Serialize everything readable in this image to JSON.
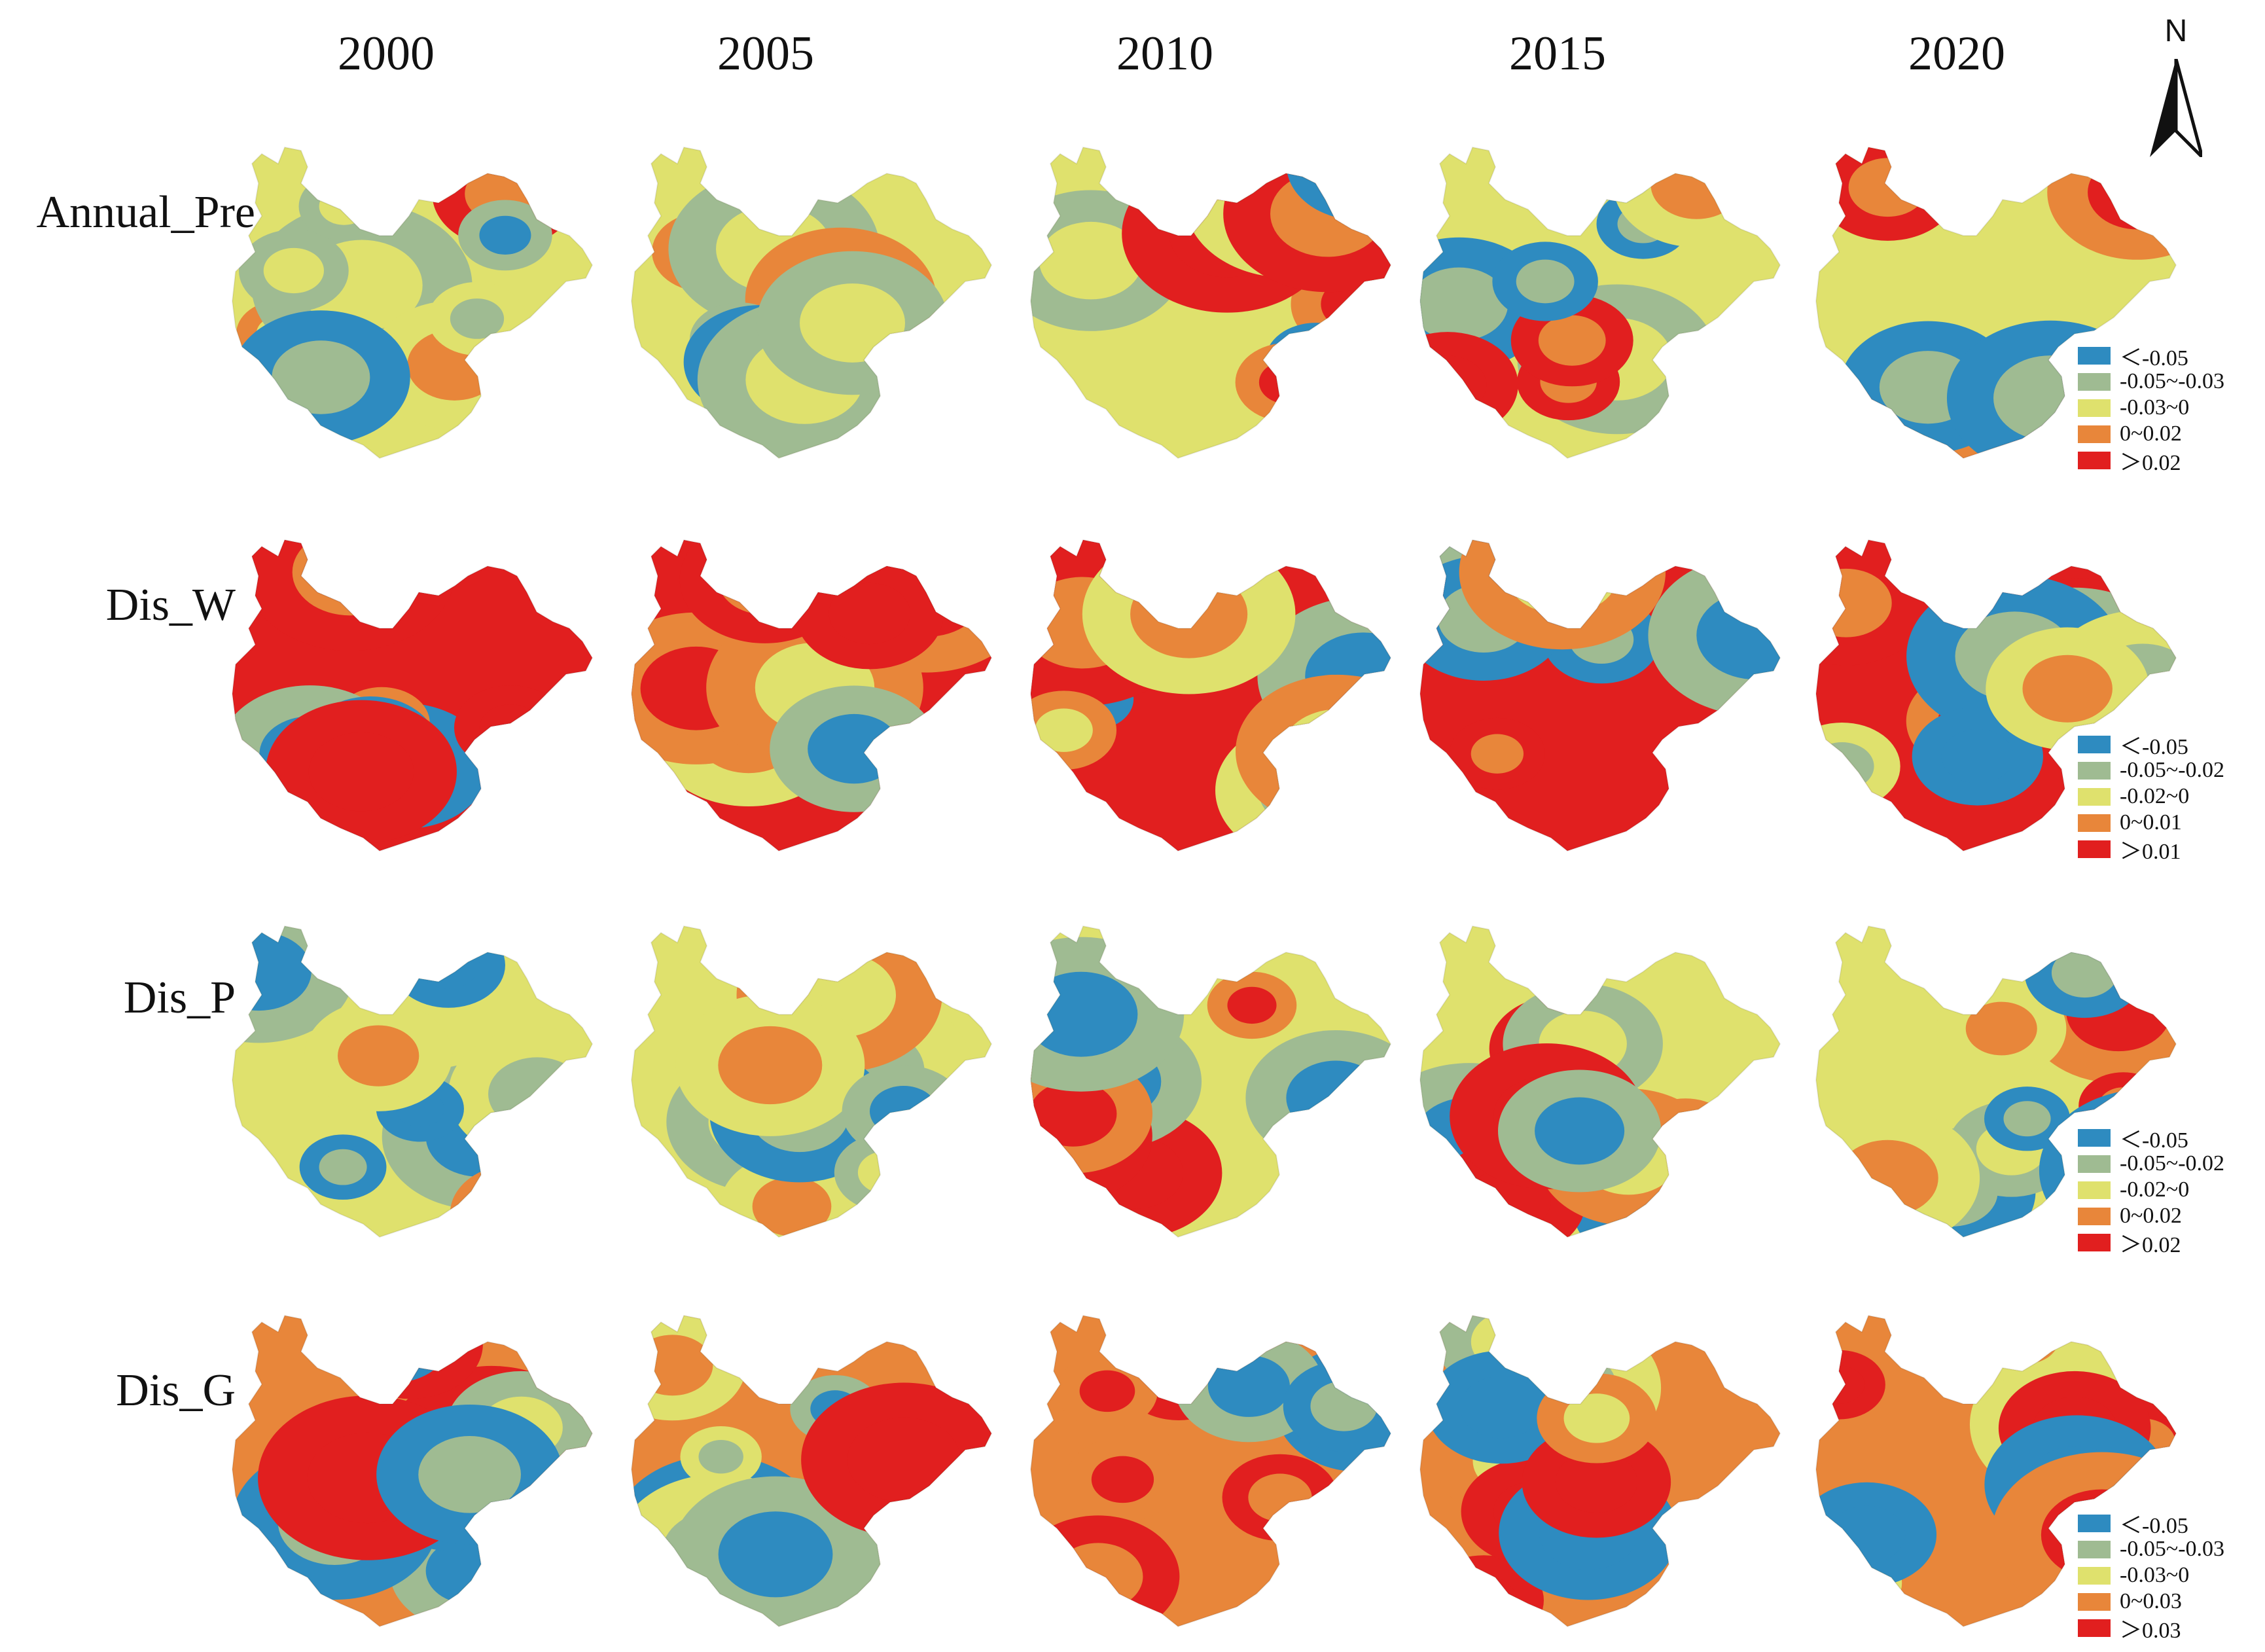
{
  "years": [
    "2000",
    "2005",
    "2010",
    "2015",
    "2020"
  ],
  "north_label": "N",
  "palette": {
    "c1": "#2e8bc0",
    "c2": "#9fbb92",
    "c3": "#dfe16d",
    "c4": "#e8863a",
    "c5": "#e11f1f"
  },
  "rows": [
    {
      "label": "Annual_Pre",
      "legend": [
        "＜-0.05",
        "-0.05~-0.03",
        "-0.03~0",
        "0~0.02",
        "＞0.02"
      ]
    },
    {
      "label": "Dis_W",
      "legend": [
        "＜-0.05",
        "-0.05~-0.02",
        "-0.02~0",
        "0~0.01",
        "＞0.01"
      ]
    },
    {
      "label": "Dis_P",
      "legend": [
        "＜-0.05",
        "-0.05~-0.02",
        "-0.02~0",
        "0~0.02",
        "＞0.02"
      ]
    },
    {
      "label": "Dis_G",
      "legend": [
        "＜-0.05",
        "-0.05~-0.03",
        "-0.03~0",
        "0~0.03",
        "＞0.03"
      ]
    }
  ]
}
